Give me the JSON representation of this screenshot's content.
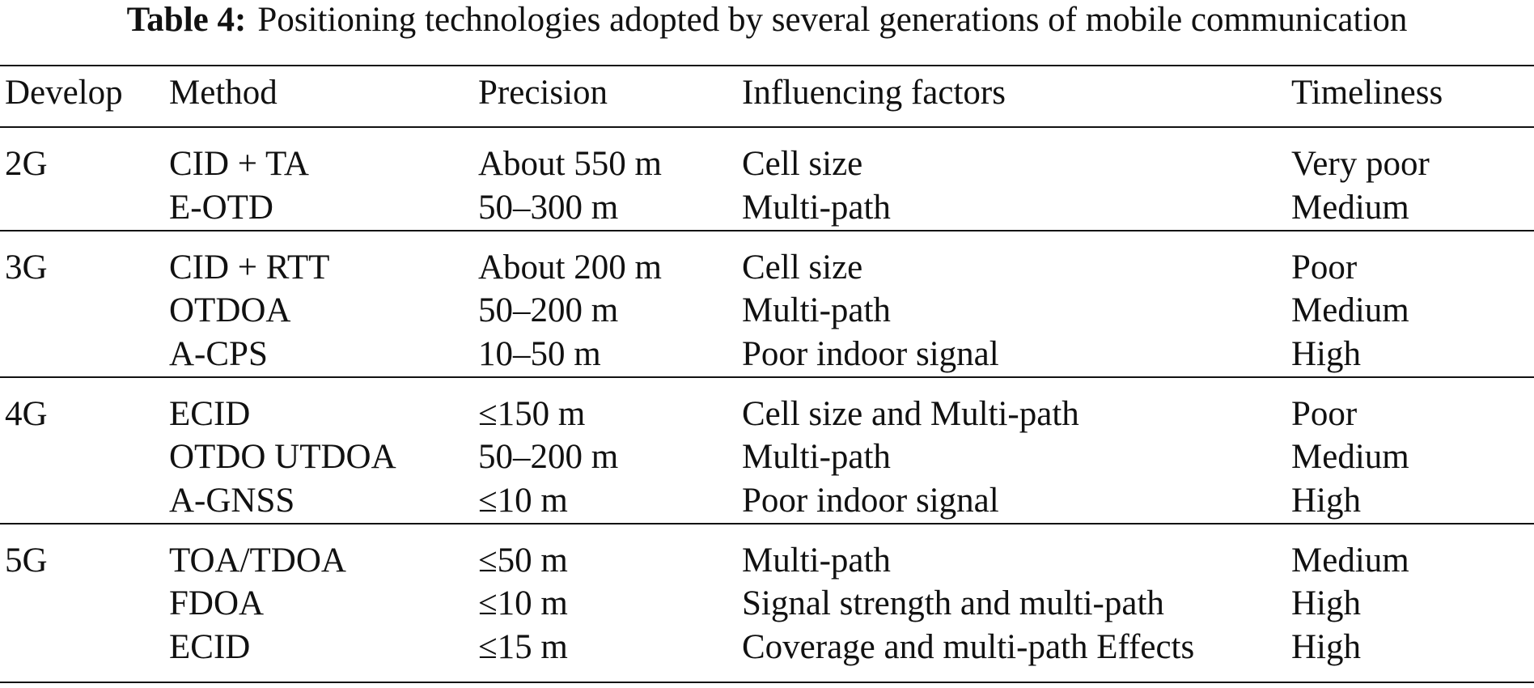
{
  "caption": {
    "label": "Table 4:",
    "text": "Positioning technologies adopted by several generations of mobile communication"
  },
  "header": [
    "Develop",
    "Method",
    "Precision",
    "Influencing factors",
    "Timeliness"
  ],
  "groups": [
    {
      "develop": "2G",
      "rows": [
        [
          "CID + TA",
          "About 550 m",
          "Cell size",
          "Very poor"
        ],
        [
          "E-OTD",
          "50–300 m",
          "Multi-path",
          "Medium"
        ]
      ]
    },
    {
      "develop": "3G",
      "rows": [
        [
          "CID + RTT",
          "About 200 m",
          "Cell size",
          "Poor"
        ],
        [
          "OTDOA",
          "50–200 m",
          "Multi-path",
          "Medium"
        ],
        [
          "A-CPS",
          "10–50 m",
          "Poor indoor signal",
          "High"
        ]
      ]
    },
    {
      "develop": "4G",
      "rows": [
        [
          "ECID",
          "≤150 m",
          "Cell size and Multi-path",
          "Poor"
        ],
        [
          "OTDO UTDOA",
          "50–200 m",
          "Multi-path",
          "Medium"
        ],
        [
          "A-GNSS",
          "≤10 m",
          "Poor indoor signal",
          "High"
        ]
      ]
    },
    {
      "develop": "5G",
      "rows": [
        [
          "TOA/TDOA",
          "≤50 m",
          "Multi-path",
          "Medium"
        ],
        [
          "FDOA",
          "≤10 m",
          "Signal strength and multi-path",
          "High"
        ],
        [
          "ECID",
          "≤15 m",
          "Coverage and multi-path Effects",
          "High"
        ]
      ]
    }
  ]
}
